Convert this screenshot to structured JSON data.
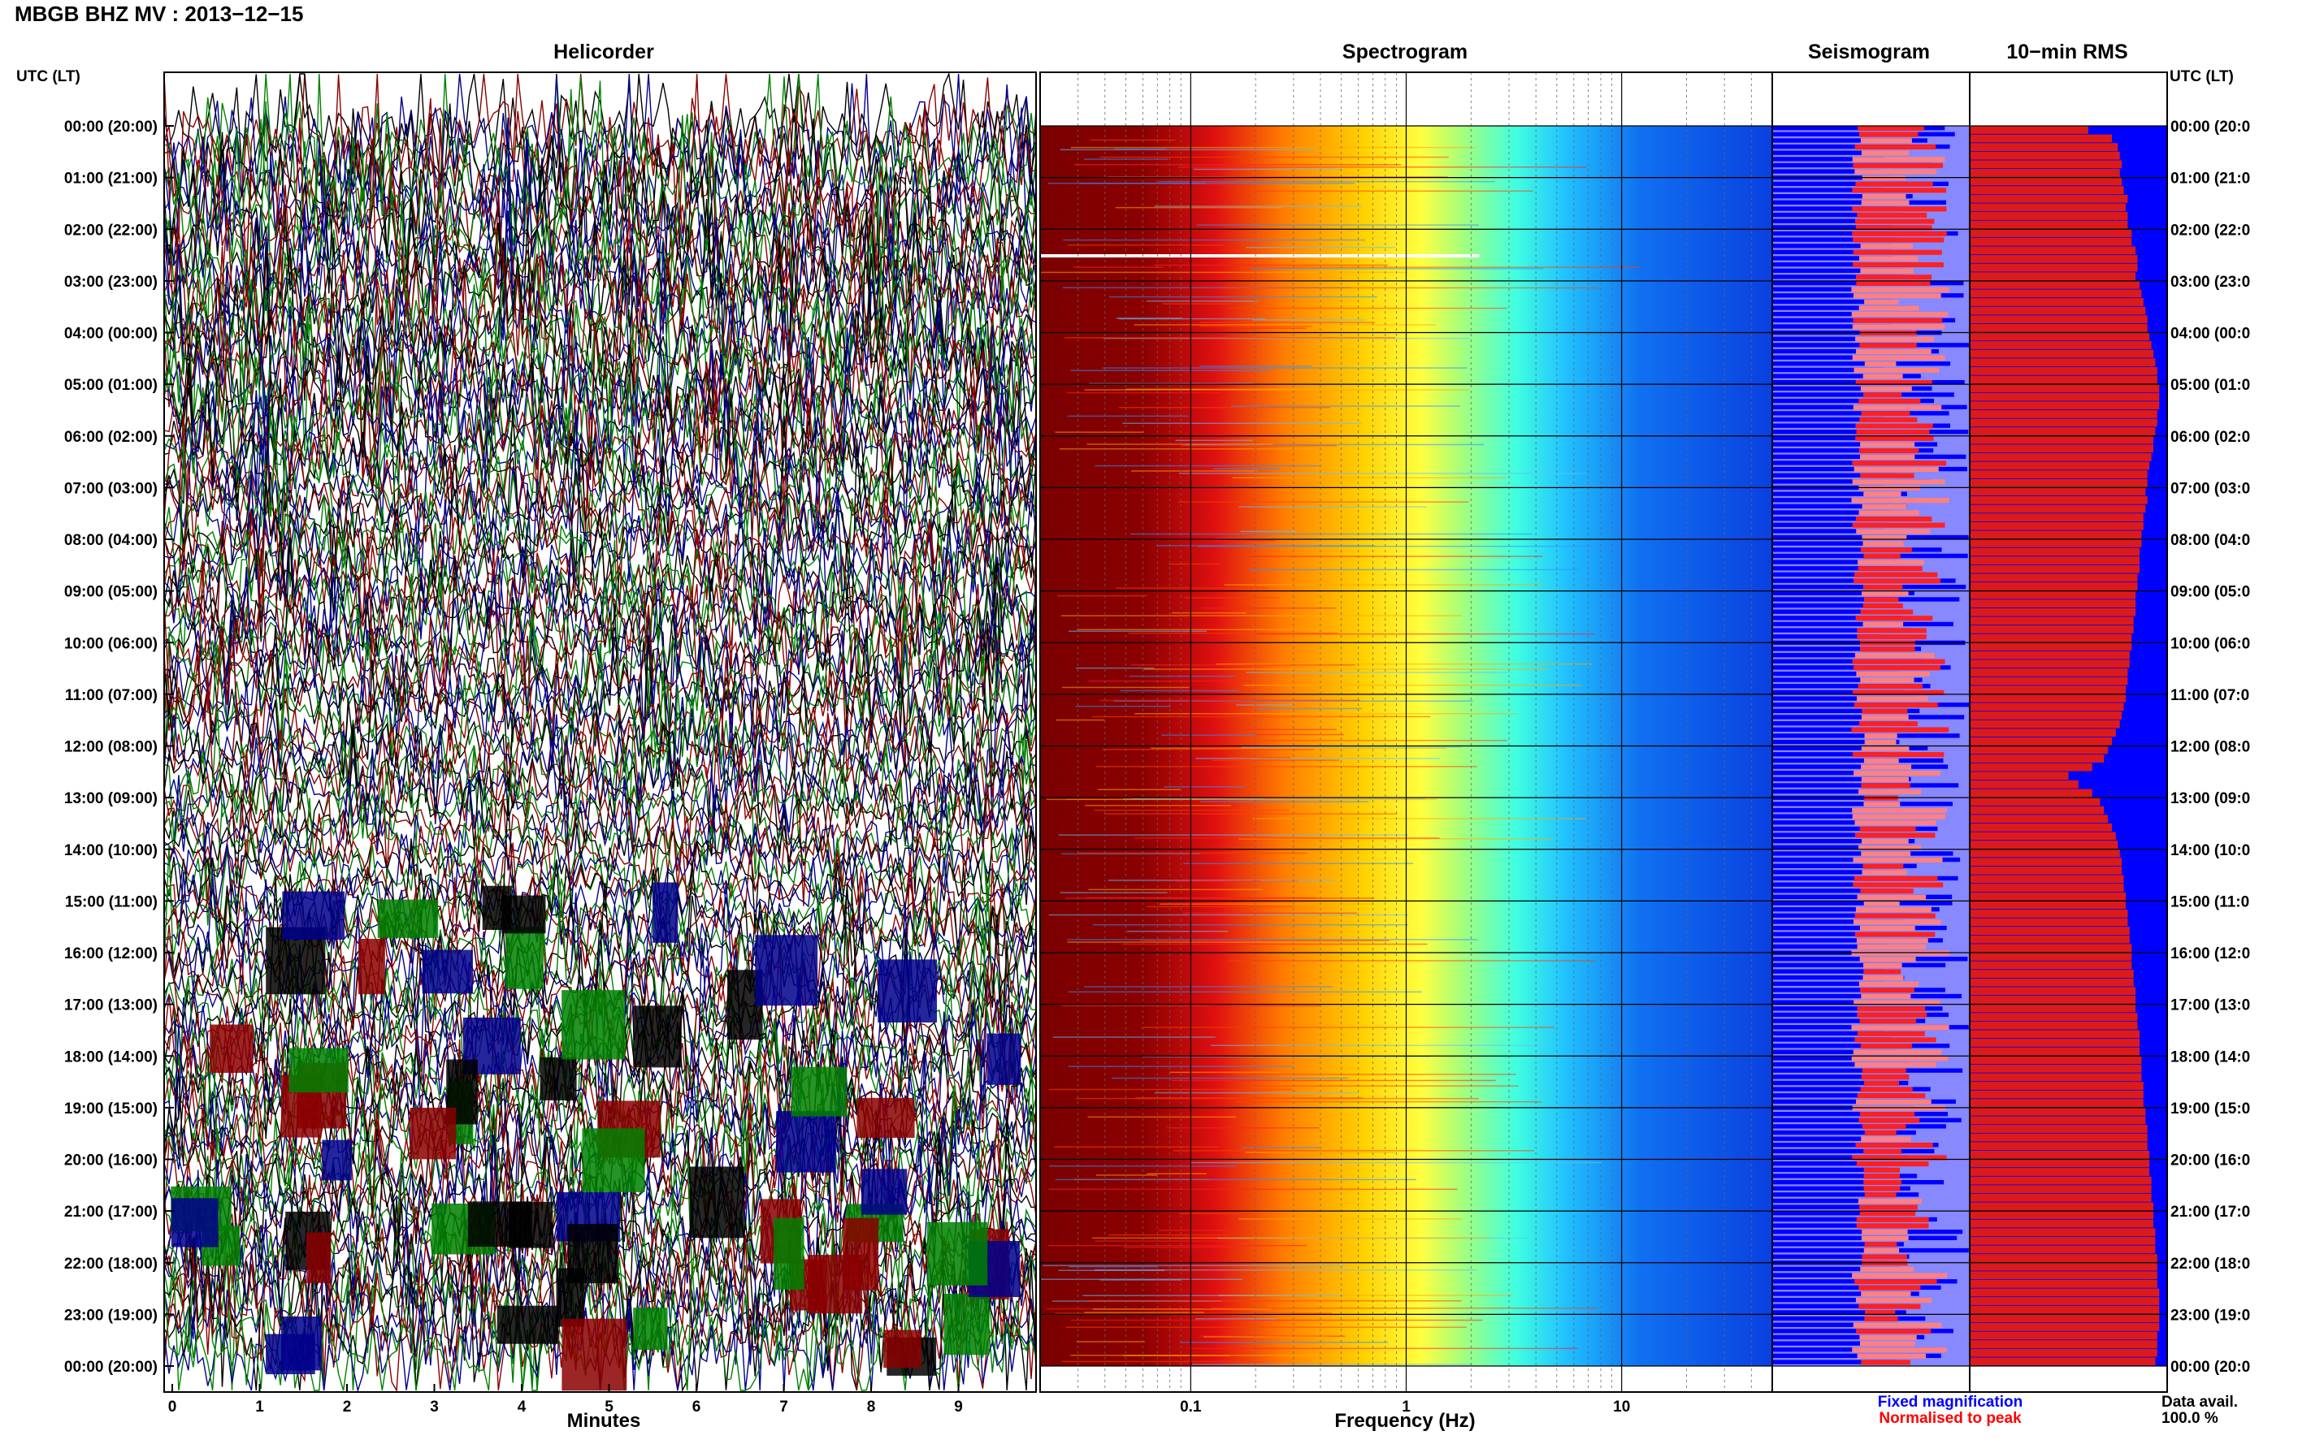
{
  "header": {
    "title": "MBGB BHZ MV : 2013−12−15"
  },
  "panels": {
    "helicorder": "Helicorder",
    "spectrogram": "Spectrogram",
    "seismogram": "Seismogram",
    "rms": "10−min RMS"
  },
  "axis": {
    "left_label": "UTC (LT)",
    "right_label": "UTC (LT)",
    "hours": [
      "00:00 (20:00)",
      "01:00 (21:00)",
      "02:00 (22:00)",
      "03:00 (23:00)",
      "04:00 (00:00)",
      "05:00 (01:00)",
      "06:00 (02:00)",
      "07:00 (03:00)",
      "08:00 (04:00)",
      "09:00 (05:00)",
      "10:00 (06:00)",
      "11:00 (07:00)",
      "12:00 (08:00)",
      "13:00 (09:00)",
      "14:00 (10:00)",
      "15:00 (11:00)",
      "16:00 (12:00)",
      "17:00 (13:00)",
      "18:00 (14:00)",
      "19:00 (15:00)",
      "20:00 (16:00)",
      "21:00 (17:00)",
      "22:00 (18:00)",
      "23:00 (19:00)",
      "00:00 (20:00)"
    ],
    "right_hours": [
      "00:00 (20:0",
      "01:00 (21:0",
      "02:00 (22:0",
      "03:00 (23:0",
      "04:00 (00:0",
      "05:00 (01:0",
      "06:00 (02:0",
      "07:00 (03:0",
      "08:00 (04:0",
      "09:00 (05:0",
      "10:00 (06:0",
      "11:00 (07:0",
      "12:00 (08:0",
      "13:00 (09:0",
      "14:00 (10:0",
      "15:00 (11:0",
      "16:00 (12:0",
      "17:00 (13:0",
      "18:00 (14:0",
      "19:00 (15:0",
      "20:00 (16:0",
      "21:00 (17:0",
      "22:00 (18:0",
      "23:00 (19:0",
      "00:00 (20:0"
    ]
  },
  "legend": {
    "fixed": "Fixed magnification",
    "normalised": "Normalised to peak",
    "data_avail_label": "Data avail.",
    "data_avail_value": "100.0 %"
  },
  "colors": {
    "helicorder_traces": [
      "#000000",
      "#8b0000",
      "#00008b",
      "#008000"
    ],
    "fixed_magnification": "#0000ff",
    "normalised_to_peak": "#ff0000",
    "rms_fill": "#dd1a1a",
    "rms_bg": "#0000ff"
  },
  "chart_data": [
    {
      "type": "line",
      "panel": "Helicorder",
      "xlabel": "Minutes",
      "x_ticks": [
        "0",
        "1",
        "2",
        "3",
        "4",
        "5",
        "6",
        "7",
        "8",
        "9"
      ],
      "xlim": [
        0,
        10
      ],
      "rows": 144,
      "activity_by_hour": [
        5,
        5,
        5,
        5,
        5,
        5,
        4,
        4,
        4,
        4,
        4,
        4,
        4,
        3,
        3,
        3,
        4,
        4,
        4,
        4,
        4,
        4,
        5,
        5
      ]
    },
    {
      "type": "heatmap",
      "panel": "Spectrogram",
      "xlabel": "Frequency (Hz)",
      "x_scale": "log",
      "x_ticks": [
        "0.1",
        "1",
        "10"
      ],
      "x_tick_values": [
        0.1,
        1,
        10
      ],
      "xlim": [
        0.02,
        50
      ],
      "colormap": [
        "#800000",
        "#ff0000",
        "#ff8c00",
        "#ffff00",
        "#80ff80",
        "#00ffff",
        "#0000ff"
      ]
    },
    {
      "type": "bar",
      "panel": "Seismogram",
      "series": [
        {
          "name": "Fixed magnification"
        },
        {
          "name": "Normalised to peak"
        }
      ]
    },
    {
      "type": "bar",
      "panel": "10−min RMS",
      "xlim": [
        0,
        1
      ],
      "values": [
        0.6,
        0.72,
        0.75,
        0.76,
        0.77,
        0.76,
        0.77,
        0.78,
        0.8,
        0.79,
        0.8,
        0.8,
        0.82,
        0.82,
        0.84,
        0.85,
        0.85,
        0.84,
        0.86,
        0.87,
        0.88,
        0.89,
        0.9,
        0.9,
        0.91,
        0.92,
        0.93,
        0.94,
        0.95,
        0.95,
        0.96,
        0.96,
        0.96,
        0.95,
        0.95,
        0.94,
        0.93,
        0.93,
        0.92,
        0.91,
        0.9,
        0.9,
        0.89,
        0.9,
        0.89,
        0.88,
        0.88,
        0.87,
        0.87,
        0.86,
        0.86,
        0.86,
        0.85,
        0.85,
        0.84,
        0.84,
        0.84,
        0.83,
        0.83,
        0.82,
        0.82,
        0.81,
        0.81,
        0.8,
        0.8,
        0.79,
        0.79,
        0.78,
        0.77,
        0.76,
        0.74,
        0.72,
        0.7,
        0.68,
        0.62,
        0.5,
        0.55,
        0.62,
        0.66,
        0.68,
        0.7,
        0.72,
        0.74,
        0.75,
        0.76,
        0.77,
        0.77,
        0.78,
        0.78,
        0.79,
        0.79,
        0.8,
        0.8,
        0.81,
        0.81,
        0.82,
        0.82,
        0.82,
        0.83,
        0.83,
        0.84,
        0.84,
        0.84,
        0.85,
        0.85,
        0.86,
        0.86,
        0.86,
        0.87,
        0.87,
        0.87,
        0.88,
        0.88,
        0.88,
        0.89,
        0.89,
        0.9,
        0.9,
        0.9,
        0.91,
        0.91,
        0.91,
        0.92,
        0.92,
        0.92,
        0.93,
        0.93,
        0.93,
        0.94,
        0.94,
        0.94,
        0.95,
        0.95,
        0.95,
        0.95,
        0.96,
        0.96,
        0.96,
        0.96,
        0.96,
        0.95,
        0.95,
        0.95,
        0.94
      ]
    }
  ]
}
